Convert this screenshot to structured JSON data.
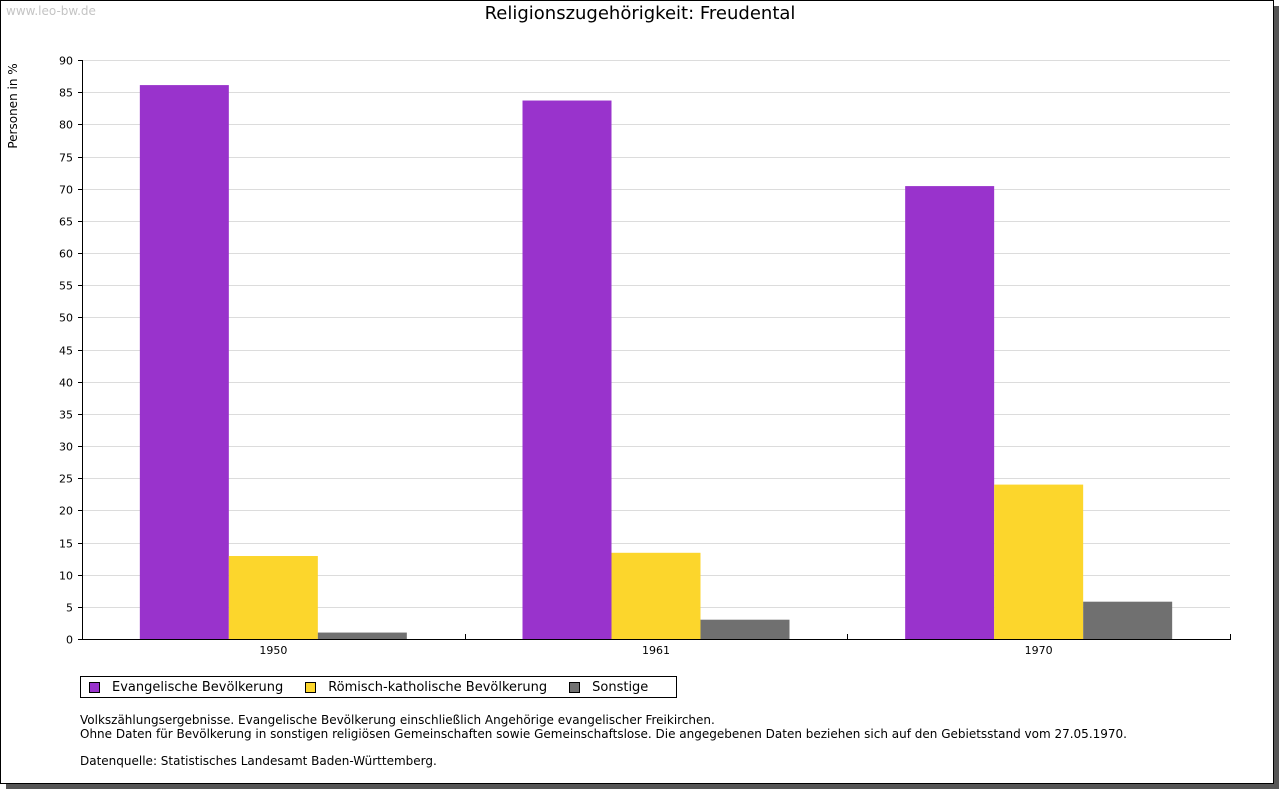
{
  "watermark": "www.leo-bw.de",
  "chart_data": {
    "type": "bar",
    "title": "Religionszugehörigkeit: Freudental",
    "ylabel": "Personen in %",
    "xlabel": "",
    "categories": [
      "1950",
      "1961",
      "1970"
    ],
    "ylim": [
      0,
      90
    ],
    "yticks": [
      0,
      5,
      10,
      15,
      20,
      25,
      30,
      35,
      40,
      45,
      50,
      55,
      60,
      65,
      70,
      75,
      80,
      85,
      90
    ],
    "grid": true,
    "legend_position": "bottom-left",
    "series": [
      {
        "name": "Evangelische Bevölkerung",
        "color": "#9933cc",
        "values": [
          86.1,
          83.7,
          70.4
        ]
      },
      {
        "name": "Römisch-katholische Bevölkerung",
        "color": "#fcd62c",
        "values": [
          12.9,
          13.4,
          24.0
        ]
      },
      {
        "name": "Sonstige",
        "color": "#707070",
        "values": [
          1.0,
          3.0,
          5.8
        ]
      }
    ]
  },
  "notes": {
    "line1": "Volkszählungsergebnisse. Evangelische Bevölkerung einschließlich Angehörige evangelischer Freikirchen.",
    "line2": "Ohne Daten für Bevölkerung in sonstigen religiösen Gemeinschaften sowie Gemeinschaftslose. Die angegebenen Daten beziehen sich auf den Gebietsstand vom 27.05.1970.",
    "source": "Datenquelle: Statistisches Landesamt Baden-Württemberg."
  }
}
